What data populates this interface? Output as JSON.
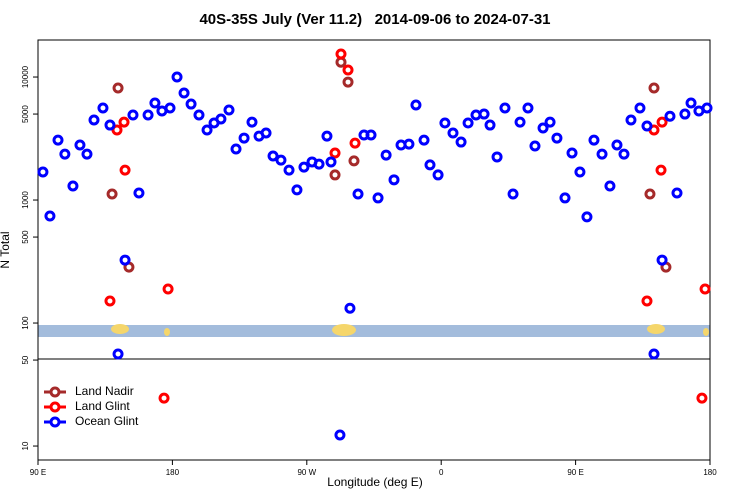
{
  "chart_data": {
    "type": "scatter",
    "title": "40S-35S July (Ver 11.2)   2014-09-06 to 2024-07-31",
    "x_label": "Longitude (deg E)",
    "y_label": "N Total",
    "xlim": [
      90,
      540
    ],
    "xticks": [
      {
        "value": 90,
        "label": "90 E"
      },
      180,
      {
        "value": 270,
        "label": "90 W"
      },
      {
        "value": 360,
        "label": "0"
      },
      {
        "value": 450,
        "label": "90 E"
      },
      {
        "value": 540,
        "label": "180"
      }
    ],
    "ylim": [
      7.7,
      20000
    ],
    "log_y": true,
    "yticks": [
      10,
      50,
      100,
      500,
      1000,
      5000,
      10000
    ],
    "grid": false,
    "legend": "bottom-left",
    "series": [
      {
        "name": "Land Nadir",
        "color": "#a52a2a",
        "x": [
          139.6,
          143.6,
          150.9,
          288.9,
          292.9,
          297.6,
          301.6,
          499.8,
          502.5,
          510.5
        ],
        "values": [
          1120,
          8150,
          285,
          1600,
          13200,
          9100,
          2080,
          1120,
          8150,
          285
        ]
      },
      {
        "name": "Land Glint",
        "color": "#ff0000",
        "x": [
          138.2,
          142.9,
          147.6,
          148.3,
          177.1,
          174.4,
          288.9,
          292.9,
          297.6,
          302.3,
          497.8,
          502.5,
          507.9,
          507.2,
          536.7,
          534.6
        ],
        "values": [
          151,
          3710,
          4300,
          1750,
          189,
          24.5,
          2410,
          15400,
          11400,
          2900,
          151,
          3710,
          4300,
          1750,
          189,
          24.5
        ]
      },
      {
        "name": "Ocean Glint",
        "color": "#0000ff",
        "x": [
          93.3,
          98.0,
          103.4,
          108.0,
          113.4,
          118.1,
          122.8,
          127.5,
          133.5,
          138.2,
          143.6,
          148.3,
          153.6,
          157.6,
          163.7,
          168.3,
          173.0,
          178.4,
          183.1,
          187.8,
          192.5,
          197.8,
          203.2,
          207.9,
          212.5,
          217.9,
          222.6,
          228.0,
          233.3,
          238.0,
          242.7,
          247.4,
          252.7,
          258.1,
          263.4,
          268.1,
          273.5,
          278.2,
          283.5,
          286.2,
          292.2,
          298.9,
          304.3,
          308.3,
          313.0,
          317.7,
          323.1,
          328.4,
          333.1,
          338.4,
          343.1,
          348.5,
          352.5,
          357.9,
          362.5,
          367.9,
          373.3,
          378.0,
          383.3,
          388.7,
          392.7,
          397.4,
          402.7,
          408.1,
          412.8,
          418.1,
          422.8,
          428.2,
          432.9,
          437.5,
          442.9,
          447.6,
          452.9,
          457.6,
          462.3,
          467.7,
          473.0,
          477.7,
          482.4,
          487.1,
          493.1,
          497.8,
          502.5,
          507.9,
          513.2,
          517.9,
          523.2,
          527.3,
          532.6,
          538.0
        ],
        "values": [
          1690,
          741,
          3070,
          2360,
          1300,
          2800,
          2360,
          4470,
          5600,
          4070,
          56,
          325,
          4910,
          1140,
          4910,
          6150,
          5300,
          5600,
          10000,
          7410,
          6030,
          4910,
          3710,
          4230,
          4560,
          5390,
          2600,
          3190,
          4300,
          3310,
          3510,
          2280,
          2110,
          1750,
          1210,
          1850,
          2040,
          1960,
          3310,
          2040,
          12.3,
          132,
          1120,
          3380,
          3380,
          1040,
          2320,
          1460,
          2800,
          2850,
          5920,
          3070,
          1930,
          1600,
          4230,
          3510,
          2960,
          4230,
          4910,
          5000,
          4070,
          2240,
          5600,
          1120,
          4300,
          5600,
          2750,
          3850,
          4300,
          3190,
          1040,
          2410,
          1690,
          730,
          3070,
          2360,
          1300,
          2800,
          2360,
          4470,
          5600,
          4000,
          56,
          325,
          4800,
          1140,
          5000,
          6150,
          5300,
          5600
        ]
      }
    ]
  }
}
